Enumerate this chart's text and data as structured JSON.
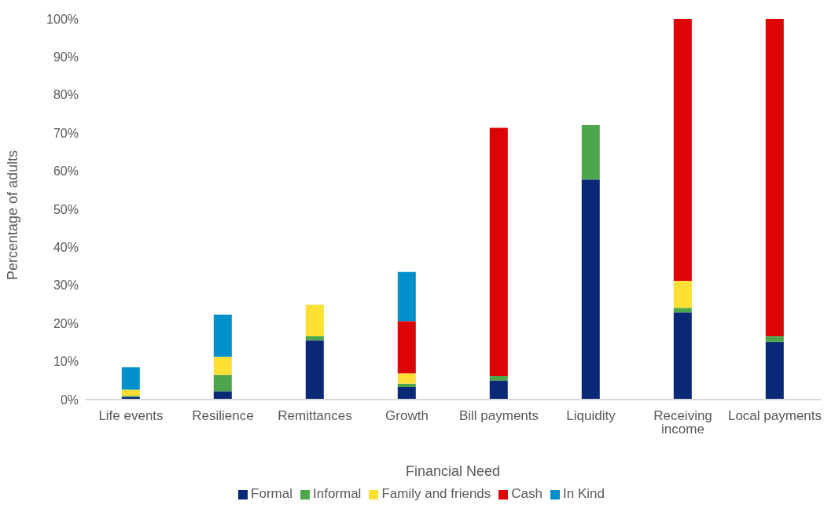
{
  "chart_data": {
    "type": "bar",
    "stacked": true,
    "xlabel": "Financial Need",
    "ylabel": "Percentage of adults",
    "categories": [
      "Life events",
      "Resilience",
      "Remittances",
      "Growth",
      "Bill payments",
      "Liquidity",
      "Receiving income",
      "Local payments"
    ],
    "series": [
      {
        "name": "Formal",
        "color": "#0a2878",
        "values": [
          0.7,
          2.2,
          15.6,
          3.3,
          5.0,
          57.8,
          22.9,
          15.1
        ]
      },
      {
        "name": "Informal",
        "color": "#4ea64c",
        "values": [
          0.3,
          4.3,
          1.1,
          0.9,
          1.2,
          14.3,
          1.2,
          1.6
        ]
      },
      {
        "name": "Family and friends",
        "color": "#ffe032",
        "values": [
          1.6,
          4.7,
          8.2,
          2.7,
          0,
          0,
          7.1,
          0
        ]
      },
      {
        "name": "Cash",
        "color": "#dc0404",
        "values": [
          0,
          0,
          0,
          13.7,
          65.2,
          0,
          68.8,
          83.3
        ]
      },
      {
        "name": "In Kind",
        "color": "#0091cd",
        "values": [
          5.9,
          11.1,
          0,
          12.9,
          0,
          0,
          0,
          0
        ]
      }
    ],
    "ylim": [
      0,
      100
    ],
    "yticks": [
      {
        "value": 0,
        "label": "0%"
      },
      {
        "value": 10,
        "label": "10%"
      },
      {
        "value": 20,
        "label": "20%"
      },
      {
        "value": 30,
        "label": "30%"
      },
      {
        "value": 40,
        "label": "40%"
      },
      {
        "value": 50,
        "label": "50%"
      },
      {
        "value": 60,
        "label": "60%"
      },
      {
        "value": 70,
        "label": "70%"
      },
      {
        "value": 80,
        "label": "80%"
      },
      {
        "value": 90,
        "label": "90%"
      },
      {
        "value": 100,
        "label": "100%"
      }
    ],
    "grid": false,
    "legend": "bottom"
  }
}
